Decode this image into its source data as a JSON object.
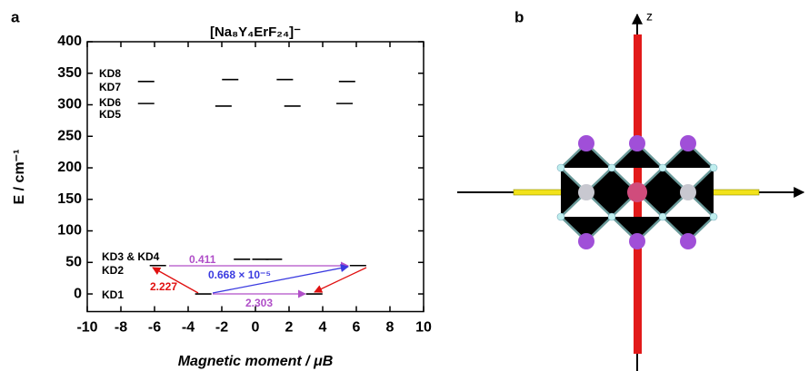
{
  "chart_data": {
    "type": "energy_level",
    "panel": "a",
    "title": "[Na₈Y₄ErF₂₄]⁻",
    "x_label": "Magnetic moment / μB",
    "y_label": "E / cm⁻¹",
    "xlim": [
      -10,
      10
    ],
    "xticks": [
      -10,
      -8,
      -6,
      -4,
      -2,
      0,
      2,
      4,
      6,
      8,
      10
    ],
    "ylim": [
      -28,
      400
    ],
    "yticks": [
      0,
      50,
      100,
      150,
      200,
      250,
      300,
      350,
      400
    ],
    "color": "#000000",
    "levels": [
      {
        "label": "KD1",
        "energy": 0,
        "moments": [
          -3.1,
          3.5
        ]
      },
      {
        "label": "KD2",
        "energy": 45,
        "moments": [
          -5.8,
          6.1
        ]
      },
      {
        "label": "KD3 & KD4",
        "energy": 55,
        "moments": [
          -0.8,
          0.3,
          1.1
        ]
      },
      {
        "label": "KD5",
        "energy": 298,
        "moments": [
          -1.9,
          2.2
        ]
      },
      {
        "label": "KD6",
        "energy": 302,
        "moments": [
          -6.5,
          5.3
        ]
      },
      {
        "label": "KD7",
        "energy": 337,
        "moments": [
          -6.5,
          5.45
        ]
      },
      {
        "label": "KD8",
        "energy": 340,
        "moments": [
          -1.5,
          1.75
        ]
      }
    ],
    "transitions": [
      {
        "value": 0.411,
        "color": "#b04fc8"
      },
      {
        "value": 6.68e-06,
        "value_labels": "0.668 × 10⁻⁵",
        "color": "#3a3ae0"
      },
      {
        "value": 2.227,
        "color": "#e01010"
      },
      {
        "value": 2.303,
        "color": "#b04fc8"
      }
    ]
  },
  "figure_b": {
    "panel": "b",
    "axis_label": "z"
  }
}
